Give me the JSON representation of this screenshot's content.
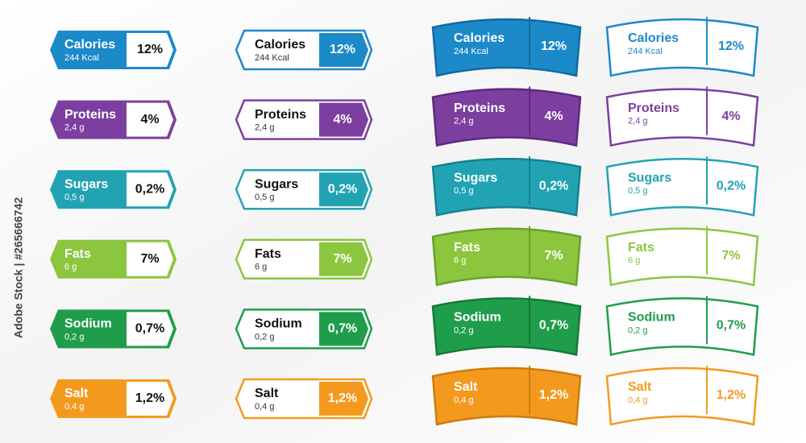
{
  "watermark": "Adobe Stock | #265666742",
  "nutrients": [
    {
      "name": "Calories",
      "amount": "244 Kcal",
      "percent": "12%",
      "color": "#1c89c8",
      "dark": "#136aa0"
    },
    {
      "name": "Proteins",
      "amount": "2,4 g",
      "percent": "4%",
      "color": "#7c3f9f",
      "dark": "#5e2a7e"
    },
    {
      "name": "Sugars",
      "amount": "0,5 g",
      "percent": "0,2%",
      "color": "#21a3b3",
      "dark": "#16808d"
    },
    {
      "name": "Fats",
      "amount": "6 g",
      "percent": "7%",
      "color": "#8cc63f",
      "dark": "#6aa12a"
    },
    {
      "name": "Sodium",
      "amount": "0,2 g",
      "percent": "0,7%",
      "color": "#1f9d4b",
      "dark": "#157a37"
    },
    {
      "name": "Salt",
      "amount": "0,4 g",
      "percent": "1,2%",
      "color": "#f39a1e",
      "dark": "#cf7b0b"
    }
  ]
}
